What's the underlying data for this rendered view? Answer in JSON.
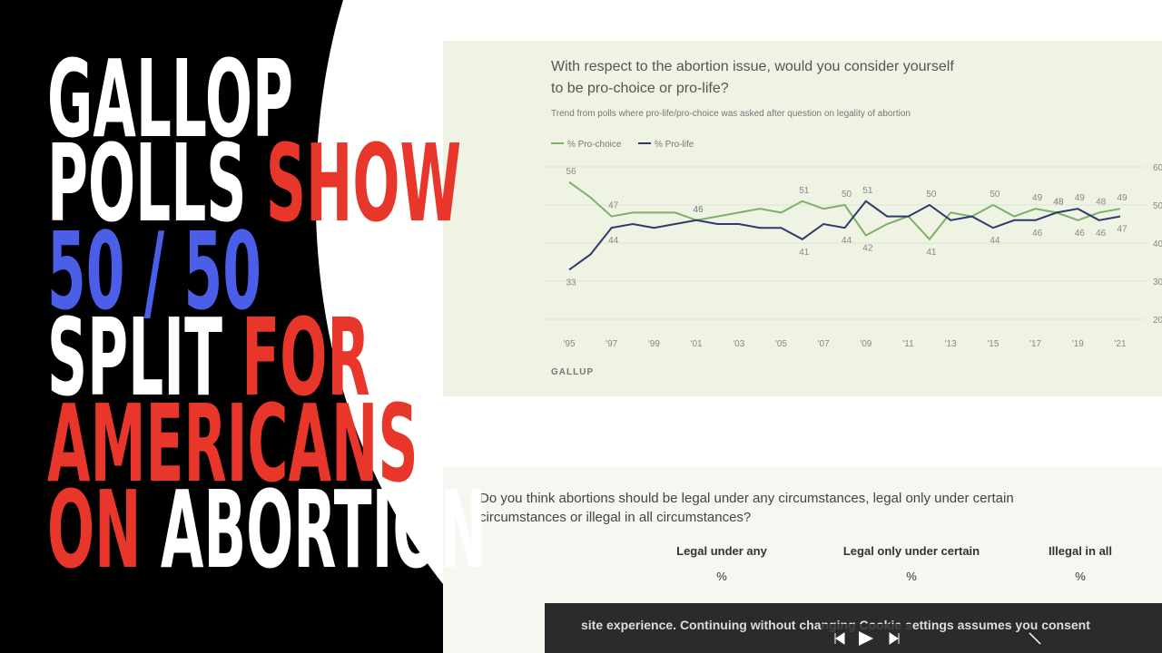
{
  "headline": {
    "lines": [
      {
        "segments": [
          {
            "text": "GALLOP",
            "color": "#ffffff"
          }
        ]
      },
      {
        "segments": [
          {
            "text": "POLLS ",
            "color": "#ffffff"
          },
          {
            "text": "SHOW",
            "color": "#e8372a"
          }
        ]
      },
      {
        "segments": [
          {
            "text": "50 / 50",
            "color": "#4a5ee8"
          }
        ]
      },
      {
        "segments": [
          {
            "text": "SPLIT ",
            "color": "#ffffff"
          },
          {
            "text": "FOR",
            "color": "#e8372a"
          }
        ]
      },
      {
        "segments": [
          {
            "text": "AMERICANS",
            "color": "#e8372a"
          }
        ]
      },
      {
        "segments": [
          {
            "text": "ON ",
            "color": "#e8372a"
          },
          {
            "text": "ABORTION",
            "color": "#ffffff"
          }
        ]
      }
    ]
  },
  "chart_data": {
    "type": "line",
    "title": "With respect to the abortion issue, would you consider yourself",
    "title_line2": "to be pro-choice or pro-life?",
    "subtitle": "Trend from polls where pro-life/pro-choice was asked after question on legality of abortion",
    "source": "GALLUP",
    "x": [
      1995,
      1996,
      1997,
      1998,
      1999,
      2000,
      2001,
      2002,
      2003,
      2004,
      2005,
      2006,
      2007,
      2008,
      2009,
      2010,
      2011,
      2012,
      2013,
      2014,
      2015,
      2016,
      2017,
      2018,
      2019,
      2020,
      2021
    ],
    "series": [
      {
        "name": "% Pro-choice",
        "color": "#7fb069",
        "values": [
          56,
          52,
          47,
          48,
          48,
          48,
          46,
          47,
          48,
          49,
          48,
          51,
          49,
          50,
          42,
          45,
          47,
          41,
          48,
          47,
          50,
          47,
          49,
          48,
          46,
          48,
          49
        ],
        "value_labels": [
          "56",
          null,
          "47",
          null,
          null,
          null,
          "46",
          null,
          null,
          null,
          null,
          "51",
          null,
          "50",
          "42",
          null,
          null,
          "41",
          null,
          null,
          "50",
          null,
          "49",
          "48",
          "46",
          "48",
          "49"
        ]
      },
      {
        "name": "% Pro-life",
        "color": "#2e3a6b",
        "values": [
          33,
          37,
          44,
          45,
          44,
          45,
          46,
          45,
          45,
          44,
          44,
          41,
          45,
          44,
          51,
          47,
          47,
          50,
          46,
          47,
          44,
          46,
          46,
          48,
          49,
          46,
          47
        ],
        "value_labels": [
          "33",
          null,
          "44",
          null,
          null,
          null,
          "46",
          null,
          null,
          null,
          null,
          "41",
          null,
          "44",
          "51",
          null,
          null,
          "50",
          null,
          null,
          "44",
          null,
          "46",
          "48",
          "49",
          "46",
          "47"
        ]
      }
    ],
    "xlim": [
      1995,
      2021
    ],
    "xticks": [
      {
        "value": 1995,
        "label": "'95"
      },
      {
        "value": 1997,
        "label": "'97"
      },
      {
        "value": 1999,
        "label": "'99"
      },
      {
        "value": 2001,
        "label": "'01"
      },
      {
        "value": 2003,
        "label": "'03"
      },
      {
        "value": 2005,
        "label": "'05"
      },
      {
        "value": 2007,
        "label": "'07"
      },
      {
        "value": 2009,
        "label": "'09"
      },
      {
        "value": 2011,
        "label": "'11"
      },
      {
        "value": 2013,
        "label": "'13"
      },
      {
        "value": 2015,
        "label": "'15"
      },
      {
        "value": 2017,
        "label": "'17"
      },
      {
        "value": 2019,
        "label": "'19"
      },
      {
        "value": 2021,
        "label": "'21"
      }
    ],
    "ylim": [
      20,
      60
    ],
    "yticks": [
      20,
      30,
      40,
      50,
      60
    ],
    "grid": true
  },
  "table": {
    "question": [
      "Do you think abortions should be legal under any circumstances, legal only under certain",
      "circumstances or illegal in all circumstances?"
    ],
    "headers": [
      "Legal under any",
      "Legal only under certain",
      "Illegal in all"
    ],
    "units": [
      "%",
      "%",
      "%"
    ]
  },
  "cookie_bar": "site experience. Continuing without changing Cookie settings assumes you consent"
}
